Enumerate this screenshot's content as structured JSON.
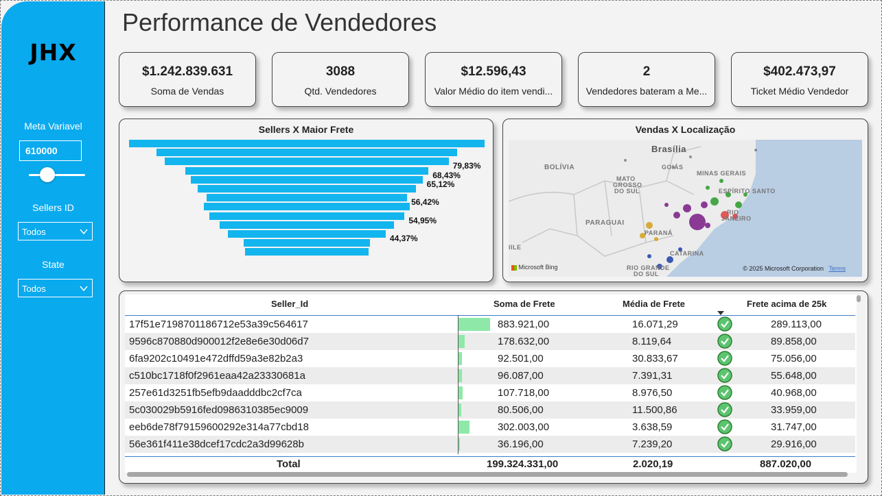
{
  "sidebar": {
    "logo": "JHX",
    "meta_label": "Meta Variavel",
    "meta_value": "610000",
    "meta_slider_fraction": 0.33,
    "sellers_label": "Sellers ID",
    "sellers_value": "Todos",
    "state_label": "State",
    "state_value": "Todos"
  },
  "page_title": "Performance de Vendedores",
  "kpis": [
    {
      "value": "$1.242.839.631",
      "label": "Soma de Vendas"
    },
    {
      "value": "3088",
      "label": "Qtd. Vendedores"
    },
    {
      "value": "$12.596,43",
      "label": "Valor Médio do item vendi..."
    },
    {
      "value": "2",
      "label": "Vendedores bateram a Me..."
    },
    {
      "value": "$402.473,97",
      "label": "Ticket Médio Vendedor"
    }
  ],
  "funnel": {
    "title": "Sellers X Maior Frete",
    "bar_color": "#13b5ee",
    "values": [
      100,
      84.6,
      79.83,
      68.43,
      65.12,
      61.5,
      56.42,
      58.0,
      54.95,
      49.0,
      44.37,
      35.7,
      34.9
    ],
    "labels": [
      "",
      "",
      "79,83%",
      "68,43%",
      "65,12%",
      "",
      "56,42%",
      "",
      "54,95%",
      "",
      "44,37%",
      "",
      ""
    ]
  },
  "map": {
    "title": "Vendas X Localização",
    "labels": {
      "brasilia": "Brasília",
      "bolivia": "BOLÍVIA",
      "goias": "GOIÁS",
      "minas": "MINAS GERAIS",
      "espirito": "ESPÍRITO SANTO",
      "mato": "MATO",
      "grosso": "GROSSO",
      "dosul": "DO SUL",
      "paraguai": "PARAGUAI",
      "parana": "PARANÁ",
      "rio": "RIO",
      "janeiro": "JANEIRO",
      "catarina": "CATARINA",
      "riogrande": "RIO GRANDE",
      "dosul2": "DO SUL",
      "chile": "IILE"
    },
    "attribution": "© 2025 Microsoft Corporation",
    "terms": "Terms",
    "bing": "Microsoft Bing"
  },
  "table": {
    "columns": [
      "Seller_Id",
      "Soma de Frete",
      "Média de Frete",
      "Frete acima de 25k"
    ],
    "rows": [
      {
        "id": "17f51e7198701186712e53a39c564617",
        "soma": "883.921,00",
        "media": "16.071,29",
        "acima": "289.113,00",
        "bar": 1.0
      },
      {
        "id": "9596c870880d900012f2e8e6e30d06d7",
        "soma": "178.632,00",
        "media": "8.119,64",
        "acima": "89.858,00",
        "bar": 0.2
      },
      {
        "id": "6fa9202c10491e472dffd59a3e82b2a3",
        "soma": "92.501,00",
        "media": "30.833,67",
        "acima": "75.056,00",
        "bar": 0.1
      },
      {
        "id": "c510bc1718f0f2961eaa42a23330681a",
        "soma": "96.087,00",
        "media": "7.391,31",
        "acima": "55.648,00",
        "bar": 0.11
      },
      {
        "id": "257e61d3251fb5efb9daadddbc2cf7ca",
        "soma": "107.718,00",
        "media": "8.976,50",
        "acima": "40.968,00",
        "bar": 0.12
      },
      {
        "id": "5c030029b5916fed0986310385ec9009",
        "soma": "80.506,00",
        "media": "11.500,86",
        "acima": "33.959,00",
        "bar": 0.09
      },
      {
        "id": "eeb6de78f79159600292e314a77cbd18",
        "soma": "302.003,00",
        "media": "3.638,59",
        "acima": "31.747,00",
        "bar": 0.34
      },
      {
        "id": "56e361f411e38dcef17cdc2a3d99628b",
        "soma": "36.196,00",
        "media": "7.239,20",
        "acima": "29.916,00",
        "bar": 0.04
      }
    ],
    "total_label": "Total",
    "total_soma": "199.324.331,00",
    "total_media": "2.020,19",
    "total_acima": "887.020,00"
  }
}
